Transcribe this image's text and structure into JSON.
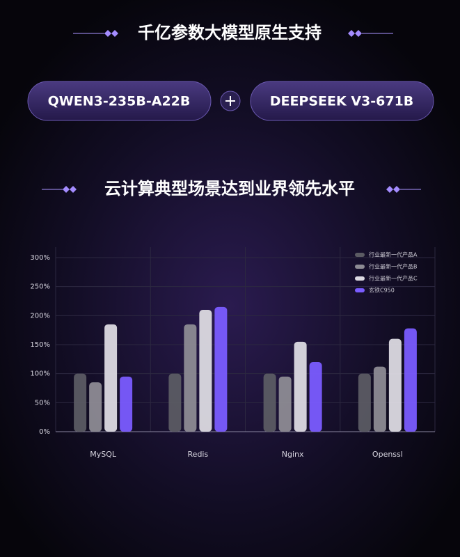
{
  "header": {
    "title": "千亿参数大模型原生支持",
    "models": [
      "QWEN3-235B-A22B",
      "DEEPSEEK V3-671B"
    ]
  },
  "chart_data": {
    "type": "bar",
    "title": "云计算典型场景达到业界领先水平",
    "categories": [
      "MySQL",
      "Redis",
      "Nginx",
      "Openssl"
    ],
    "series": [
      {
        "name": "行业最新一代产品A",
        "color": "#5b5b63",
        "values": [
          100,
          100,
          100,
          100
        ]
      },
      {
        "name": "行业最新一代产品B",
        "color": "#8d8b94",
        "values": [
          85,
          185,
          95,
          112
        ]
      },
      {
        "name": "行业最新一代产品C",
        "color": "#dcdae2",
        "values": [
          185,
          210,
          155,
          160
        ]
      },
      {
        "name": "玄铁C950",
        "color": "#7a5cff",
        "values": [
          95,
          215,
          120,
          178
        ]
      }
    ],
    "ylim": [
      0,
      300
    ],
    "yticks": [
      {
        "value": 0,
        "label": "0%"
      },
      {
        "value": 50,
        "label": "50%"
      },
      {
        "value": 100,
        "label": "100%"
      },
      {
        "value": 150,
        "label": "150%"
      },
      {
        "value": 200,
        "label": "200%"
      },
      {
        "value": 250,
        "label": "250%"
      },
      {
        "value": 300,
        "label": "300%"
      }
    ],
    "grid": true,
    "legend": "top-right"
  }
}
